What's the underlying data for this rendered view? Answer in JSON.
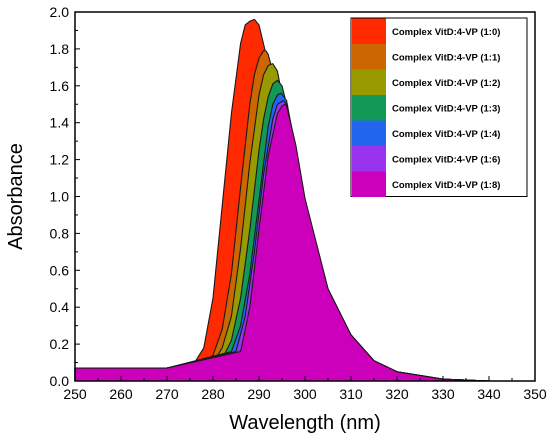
{
  "chart_data": {
    "type": "area",
    "xlabel": "Wavelength (nm)",
    "ylabel": "Absorbance",
    "xlim": [
      250,
      350
    ],
    "ylim": [
      0.0,
      2.0
    ],
    "xticks": [
      250,
      260,
      270,
      280,
      290,
      300,
      310,
      320,
      330,
      340,
      350
    ],
    "yticks": [
      0.0,
      0.2,
      0.4,
      0.6,
      0.8,
      1.0,
      1.2,
      1.4,
      1.6,
      1.8,
      2.0
    ],
    "xtick_labels": [
      "250",
      "260",
      "270",
      "280",
      "290",
      "300",
      "310",
      "320",
      "330",
      "340",
      "350"
    ],
    "ytick_labels": [
      "0.0",
      "0.2",
      "0.4",
      "0.6",
      "0.8",
      "1.0",
      "1.2",
      "1.4",
      "1.6",
      "1.8",
      "2.0"
    ],
    "grid": false,
    "legend_position": "top-right",
    "series": [
      {
        "name": "Complex VitD:4-VP (1:0)",
        "color": "#ff2a00",
        "peak_x": 289.0,
        "peak_y": 1.96,
        "x": [
          250,
          260,
          270,
          276,
          278,
          280,
          282,
          284,
          286,
          287,
          288,
          289,
          290,
          292,
          294,
          296,
          298,
          300,
          305,
          310,
          315,
          320,
          330,
          340,
          350
        ],
        "y": [
          0.07,
          0.07,
          0.07,
          0.1,
          0.18,
          0.45,
          0.95,
          1.45,
          1.83,
          1.93,
          1.95,
          1.96,
          1.93,
          1.72,
          1.48,
          1.22,
          0.98,
          0.78,
          0.42,
          0.22,
          0.1,
          0.05,
          0.01,
          0.0,
          0.0
        ]
      },
      {
        "name": "Complex VitD:4-VP (1:1)",
        "color": "#cc6600",
        "peak_x": 291.5,
        "peak_y": 1.79,
        "x": [
          250,
          260,
          270,
          278,
          280,
          282,
          284,
          286,
          288,
          289,
          290,
          291,
          291.5,
          292,
          294,
          296,
          298,
          300,
          305,
          310,
          315,
          320,
          330,
          340,
          350
        ],
        "y": [
          0.07,
          0.07,
          0.07,
          0.09,
          0.14,
          0.28,
          0.58,
          1.05,
          1.5,
          1.66,
          1.75,
          1.79,
          1.79,
          1.77,
          1.58,
          1.3,
          1.04,
          0.82,
          0.44,
          0.23,
          0.11,
          0.05,
          0.01,
          0.0,
          0.0
        ]
      },
      {
        "name": "Complex VitD:4-VP (1:2)",
        "color": "#999900",
        "peak_x": 293.0,
        "peak_y": 1.72,
        "x": [
          250,
          260,
          270,
          280,
          282,
          284,
          286,
          288,
          290,
          291,
          292,
          293,
          294,
          296,
          298,
          300,
          305,
          310,
          315,
          320,
          330,
          340,
          350
        ],
        "y": [
          0.07,
          0.07,
          0.07,
          0.1,
          0.18,
          0.35,
          0.72,
          1.18,
          1.55,
          1.66,
          1.71,
          1.72,
          1.68,
          1.42,
          1.12,
          0.88,
          0.46,
          0.24,
          0.11,
          0.05,
          0.01,
          0.0,
          0.0
        ]
      },
      {
        "name": "Complex VitD:4-VP (1:3)",
        "color": "#119955",
        "peak_x": 294.0,
        "peak_y": 1.63,
        "x": [
          250,
          260,
          270,
          282,
          284,
          286,
          288,
          290,
          291,
          292,
          293,
          294,
          295,
          296,
          298,
          300,
          305,
          310,
          315,
          320,
          330,
          340,
          350
        ],
        "y": [
          0.07,
          0.07,
          0.07,
          0.12,
          0.22,
          0.45,
          0.82,
          1.25,
          1.42,
          1.54,
          1.61,
          1.63,
          1.6,
          1.5,
          1.2,
          0.93,
          0.48,
          0.25,
          0.11,
          0.05,
          0.01,
          0.0,
          0.0
        ]
      },
      {
        "name": "Complex VitD:4-VP (1:4)",
        "color": "#2266ee",
        "peak_x": 294.8,
        "peak_y": 1.56,
        "x": [
          250,
          260,
          270,
          284,
          286,
          288,
          290,
          292,
          293,
          294,
          294.8,
          296,
          298,
          300,
          305,
          310,
          315,
          320,
          330,
          340,
          350
        ],
        "y": [
          0.07,
          0.07,
          0.07,
          0.16,
          0.3,
          0.58,
          0.98,
          1.38,
          1.5,
          1.55,
          1.56,
          1.52,
          1.25,
          0.96,
          0.49,
          0.25,
          0.11,
          0.05,
          0.01,
          0.0,
          0.0
        ]
      },
      {
        "name": "Complex VitD:4-VP (1:6)",
        "color": "#9933ee",
        "peak_x": 295.3,
        "peak_y": 1.52,
        "x": [
          250,
          260,
          270,
          285,
          287,
          289,
          291,
          293,
          294,
          295.3,
          296,
          298,
          300,
          305,
          310,
          315,
          320,
          330,
          340,
          350
        ],
        "y": [
          0.07,
          0.07,
          0.07,
          0.16,
          0.35,
          0.7,
          1.12,
          1.42,
          1.5,
          1.52,
          1.5,
          1.27,
          0.98,
          0.5,
          0.25,
          0.11,
          0.05,
          0.01,
          0.0,
          0.0
        ]
      },
      {
        "name": "Complex VitD:4-VP (1:8)",
        "color": "#cc00bb",
        "peak_x": 295.6,
        "peak_y": 1.5,
        "x": [
          250,
          260,
          270,
          286,
          288,
          290,
          292,
          294,
          295,
          295.6,
          296,
          298,
          300,
          305,
          310,
          315,
          320,
          330,
          340,
          350
        ],
        "y": [
          0.07,
          0.07,
          0.07,
          0.16,
          0.4,
          0.82,
          1.22,
          1.45,
          1.49,
          1.5,
          1.49,
          1.28,
          0.99,
          0.5,
          0.25,
          0.11,
          0.05,
          0.01,
          0.0,
          0.0
        ]
      }
    ]
  }
}
